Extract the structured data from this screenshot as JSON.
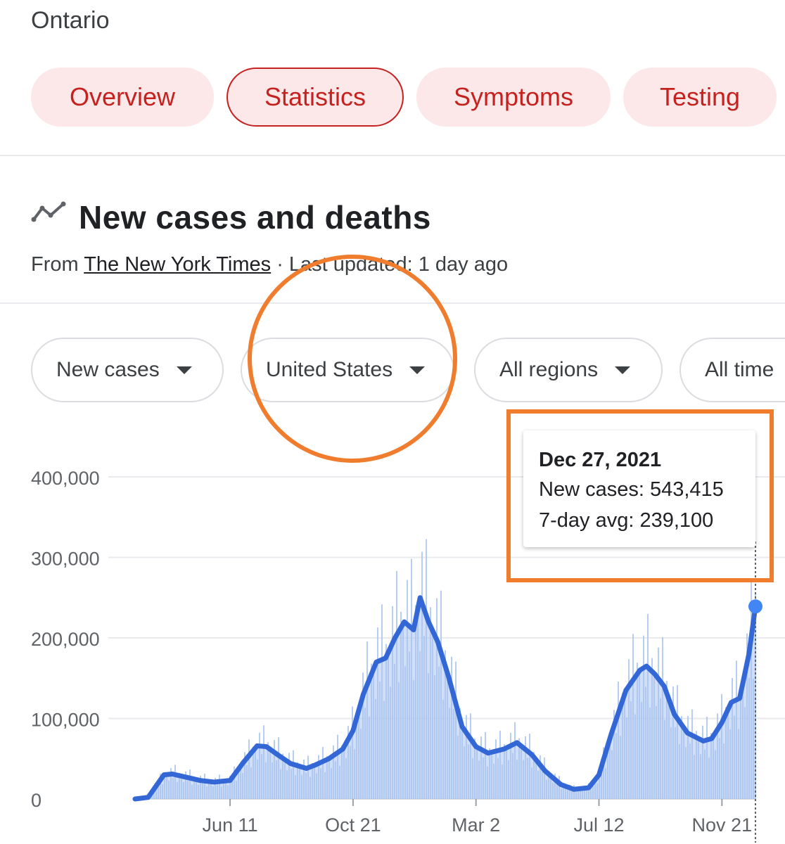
{
  "header": {
    "title": "Ontario"
  },
  "tabs": [
    {
      "label": "Overview",
      "active": false
    },
    {
      "label": "Statistics",
      "active": true
    },
    {
      "label": "Symptoms",
      "active": false
    },
    {
      "label": "Testing",
      "active": false
    }
  ],
  "section": {
    "icon": "trend-line-icon",
    "title": "New cases and deaths",
    "source_prefix": "From ",
    "source_link": "The New York Times",
    "source_suffix": " · Last updated: 1 day ago"
  },
  "filters": [
    {
      "label": "New cases"
    },
    {
      "label": "United States"
    },
    {
      "label": "All regions"
    },
    {
      "label": "All time"
    }
  ],
  "tooltip": {
    "date": "Dec 27, 2021",
    "new_cases": "New cases: 543,415",
    "avg": "7-day avg: 239,100"
  },
  "colors": {
    "accent_red": "#c5221f",
    "tab_bg": "#fce8e9",
    "line": "#3367d6",
    "bars": "#aac4f0",
    "annotation": "#f07c2e"
  },
  "chart_data": {
    "type": "area",
    "y_ticks": [
      0,
      100000,
      200000,
      300000,
      400000
    ],
    "y_tick_labels": [
      "0",
      "100,000",
      "200,000",
      "300,000",
      "400,000"
    ],
    "x_tick_labels": [
      "Jun 11",
      "Oct 21",
      "Mar 2",
      "Jul 12",
      "Nov 21"
    ],
    "ylim": [
      0,
      400000
    ],
    "series": [
      {
        "name": "7-day avg",
        "x": [
          "2020-03-01",
          "2020-03-15",
          "2020-04-01",
          "2020-04-10",
          "2020-04-25",
          "2020-05-10",
          "2020-05-25",
          "2020-06-11",
          "2020-06-25",
          "2020-07-10",
          "2020-07-20",
          "2020-08-01",
          "2020-08-15",
          "2020-09-01",
          "2020-09-10",
          "2020-09-25",
          "2020-10-10",
          "2020-10-21",
          "2020-11-01",
          "2020-11-15",
          "2020-11-25",
          "2020-12-05",
          "2020-12-15",
          "2020-12-25",
          "2021-01-01",
          "2021-01-10",
          "2021-01-20",
          "2021-02-01",
          "2021-02-15",
          "2021-03-02",
          "2021-03-15",
          "2021-04-01",
          "2021-04-15",
          "2021-05-01",
          "2021-05-15",
          "2021-06-01",
          "2021-06-15",
          "2021-07-01",
          "2021-07-12",
          "2021-07-25",
          "2021-08-10",
          "2021-08-25",
          "2021-09-01",
          "2021-09-10",
          "2021-09-20",
          "2021-10-01",
          "2021-10-15",
          "2021-11-01",
          "2021-11-10",
          "2021-11-21",
          "2021-12-01",
          "2021-12-10",
          "2021-12-20",
          "2021-12-27"
        ],
        "values": [
          0,
          2000,
          30000,
          31000,
          27000,
          23000,
          21000,
          23000,
          45000,
          66000,
          65000,
          55000,
          44000,
          38000,
          42000,
          50000,
          62000,
          85000,
          130000,
          170000,
          175000,
          200000,
          220000,
          210000,
          250000,
          220000,
          195000,
          150000,
          90000,
          65000,
          57000,
          62000,
          70000,
          55000,
          35000,
          18000,
          12000,
          14000,
          30000,
          80000,
          135000,
          160000,
          165000,
          155000,
          140000,
          105000,
          82000,
          72000,
          75000,
          95000,
          120000,
          125000,
          180000,
          239100
        ]
      }
    ],
    "tooltip_point": {
      "date": "Dec 27, 2021",
      "new_cases": 543415,
      "avg": 239100
    }
  }
}
